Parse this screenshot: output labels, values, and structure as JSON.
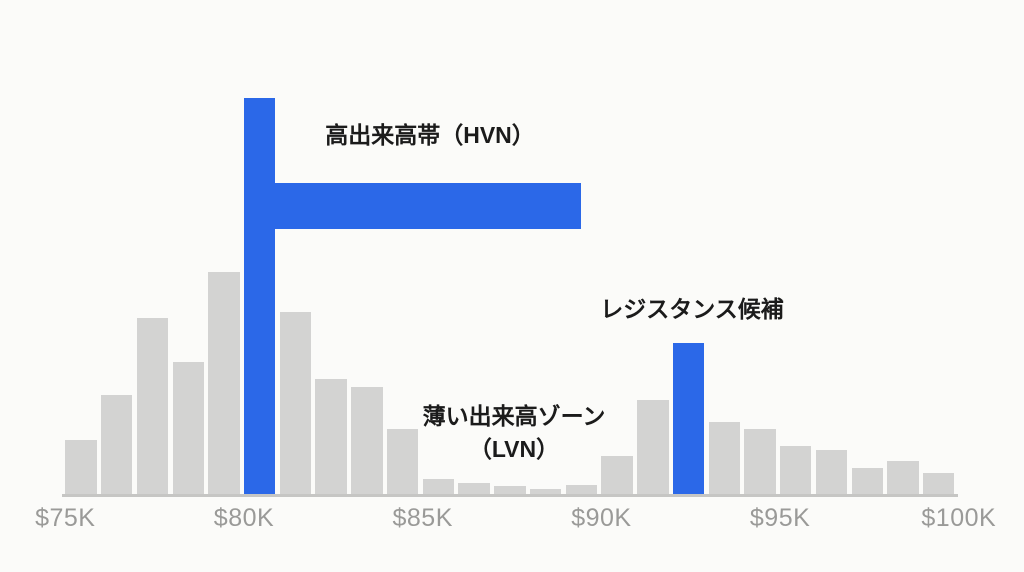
{
  "colors": {
    "background": "#fbfbf9",
    "bar_gray": "#d3d3d2",
    "bar_blue": "#2b68e8",
    "axis_line": "#c6c6c4",
    "axis_label_gray": "#9a9a98",
    "annotation_text": "#1b1b1b"
  },
  "annotations": {
    "hvn_label": "高出来高帯（HVN）",
    "resistance_label": "レジスタンス候補",
    "lvn_label_line1": "薄い出来高ゾーン",
    "lvn_label_line2": "（LVN）"
  },
  "chart_data": {
    "type": "bar",
    "title": "",
    "xlabel": "",
    "ylabel": "",
    "description": "Volume profile histogram by price level, $1K buckets from $75K to $100K",
    "x_tick_labels": [
      "$75K",
      "$80K",
      "$85K",
      "$90K",
      "$95K",
      "$100K"
    ],
    "x_tick_values_k": [
      75,
      80,
      85,
      90,
      95,
      100
    ],
    "price_bin_start_k": [
      75,
      76,
      77,
      78,
      79,
      80,
      81,
      82,
      83,
      84,
      85,
      86,
      87,
      88,
      89,
      90,
      91,
      92,
      93,
      94,
      95,
      96,
      97,
      98,
      99
    ],
    "values_relative_volume_pct": [
      13.6,
      25.0,
      44.4,
      33.3,
      56.1,
      100.0,
      46.0,
      29.0,
      27.0,
      16.4,
      3.8,
      2.8,
      2.0,
      1.3,
      2.3,
      9.6,
      23.7,
      38.1,
      18.2,
      16.4,
      12.1,
      11.1,
      6.6,
      8.3,
      5.3
    ],
    "highlight_indices": [
      5,
      17
    ],
    "highlight_meanings": [
      "高出来高帯（HVN）ピーク",
      "レジスタンス候補"
    ],
    "ylim": [
      0,
      100
    ],
    "grid": false,
    "legend": false
  }
}
